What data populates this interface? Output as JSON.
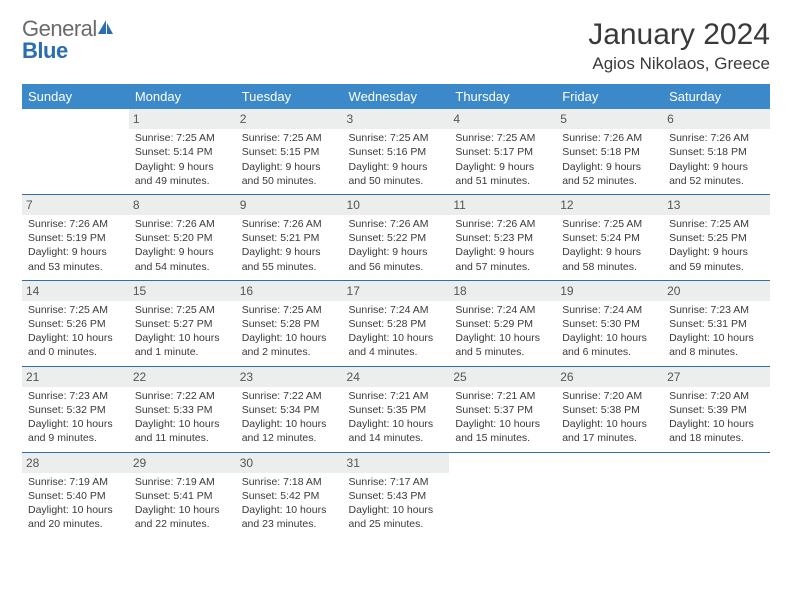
{
  "brand": {
    "part1": "General",
    "part2": "Blue"
  },
  "title": "January 2024",
  "location": "Agios Nikolaos, Greece",
  "colors": {
    "header_bg": "#3b89c9",
    "header_text": "#ffffff",
    "daynum_bg": "#eceded",
    "row_border": "#2e6fa8",
    "text": "#3a3a3a",
    "logo_blue": "#2a6db0"
  },
  "layout": {
    "columns": 7,
    "rows": 5,
    "cell_font_pt": 8,
    "title_font_pt": 22
  },
  "days_of_week": [
    "Sunday",
    "Monday",
    "Tuesday",
    "Wednesday",
    "Thursday",
    "Friday",
    "Saturday"
  ],
  "weeks": [
    [
      null,
      {
        "n": "1",
        "sr": "Sunrise: 7:25 AM",
        "ss": "Sunset: 5:14 PM",
        "d1": "Daylight: 9 hours",
        "d2": "and 49 minutes."
      },
      {
        "n": "2",
        "sr": "Sunrise: 7:25 AM",
        "ss": "Sunset: 5:15 PM",
        "d1": "Daylight: 9 hours",
        "d2": "and 50 minutes."
      },
      {
        "n": "3",
        "sr": "Sunrise: 7:25 AM",
        "ss": "Sunset: 5:16 PM",
        "d1": "Daylight: 9 hours",
        "d2": "and 50 minutes."
      },
      {
        "n": "4",
        "sr": "Sunrise: 7:25 AM",
        "ss": "Sunset: 5:17 PM",
        "d1": "Daylight: 9 hours",
        "d2": "and 51 minutes."
      },
      {
        "n": "5",
        "sr": "Sunrise: 7:26 AM",
        "ss": "Sunset: 5:18 PM",
        "d1": "Daylight: 9 hours",
        "d2": "and 52 minutes."
      },
      {
        "n": "6",
        "sr": "Sunrise: 7:26 AM",
        "ss": "Sunset: 5:18 PM",
        "d1": "Daylight: 9 hours",
        "d2": "and 52 minutes."
      }
    ],
    [
      {
        "n": "7",
        "sr": "Sunrise: 7:26 AM",
        "ss": "Sunset: 5:19 PM",
        "d1": "Daylight: 9 hours",
        "d2": "and 53 minutes."
      },
      {
        "n": "8",
        "sr": "Sunrise: 7:26 AM",
        "ss": "Sunset: 5:20 PM",
        "d1": "Daylight: 9 hours",
        "d2": "and 54 minutes."
      },
      {
        "n": "9",
        "sr": "Sunrise: 7:26 AM",
        "ss": "Sunset: 5:21 PM",
        "d1": "Daylight: 9 hours",
        "d2": "and 55 minutes."
      },
      {
        "n": "10",
        "sr": "Sunrise: 7:26 AM",
        "ss": "Sunset: 5:22 PM",
        "d1": "Daylight: 9 hours",
        "d2": "and 56 minutes."
      },
      {
        "n": "11",
        "sr": "Sunrise: 7:26 AM",
        "ss": "Sunset: 5:23 PM",
        "d1": "Daylight: 9 hours",
        "d2": "and 57 minutes."
      },
      {
        "n": "12",
        "sr": "Sunrise: 7:25 AM",
        "ss": "Sunset: 5:24 PM",
        "d1": "Daylight: 9 hours",
        "d2": "and 58 minutes."
      },
      {
        "n": "13",
        "sr": "Sunrise: 7:25 AM",
        "ss": "Sunset: 5:25 PM",
        "d1": "Daylight: 9 hours",
        "d2": "and 59 minutes."
      }
    ],
    [
      {
        "n": "14",
        "sr": "Sunrise: 7:25 AM",
        "ss": "Sunset: 5:26 PM",
        "d1": "Daylight: 10 hours",
        "d2": "and 0 minutes."
      },
      {
        "n": "15",
        "sr": "Sunrise: 7:25 AM",
        "ss": "Sunset: 5:27 PM",
        "d1": "Daylight: 10 hours",
        "d2": "and 1 minute."
      },
      {
        "n": "16",
        "sr": "Sunrise: 7:25 AM",
        "ss": "Sunset: 5:28 PM",
        "d1": "Daylight: 10 hours",
        "d2": "and 2 minutes."
      },
      {
        "n": "17",
        "sr": "Sunrise: 7:24 AM",
        "ss": "Sunset: 5:28 PM",
        "d1": "Daylight: 10 hours",
        "d2": "and 4 minutes."
      },
      {
        "n": "18",
        "sr": "Sunrise: 7:24 AM",
        "ss": "Sunset: 5:29 PM",
        "d1": "Daylight: 10 hours",
        "d2": "and 5 minutes."
      },
      {
        "n": "19",
        "sr": "Sunrise: 7:24 AM",
        "ss": "Sunset: 5:30 PM",
        "d1": "Daylight: 10 hours",
        "d2": "and 6 minutes."
      },
      {
        "n": "20",
        "sr": "Sunrise: 7:23 AM",
        "ss": "Sunset: 5:31 PM",
        "d1": "Daylight: 10 hours",
        "d2": "and 8 minutes."
      }
    ],
    [
      {
        "n": "21",
        "sr": "Sunrise: 7:23 AM",
        "ss": "Sunset: 5:32 PM",
        "d1": "Daylight: 10 hours",
        "d2": "and 9 minutes."
      },
      {
        "n": "22",
        "sr": "Sunrise: 7:22 AM",
        "ss": "Sunset: 5:33 PM",
        "d1": "Daylight: 10 hours",
        "d2": "and 11 minutes."
      },
      {
        "n": "23",
        "sr": "Sunrise: 7:22 AM",
        "ss": "Sunset: 5:34 PM",
        "d1": "Daylight: 10 hours",
        "d2": "and 12 minutes."
      },
      {
        "n": "24",
        "sr": "Sunrise: 7:21 AM",
        "ss": "Sunset: 5:35 PM",
        "d1": "Daylight: 10 hours",
        "d2": "and 14 minutes."
      },
      {
        "n": "25",
        "sr": "Sunrise: 7:21 AM",
        "ss": "Sunset: 5:37 PM",
        "d1": "Daylight: 10 hours",
        "d2": "and 15 minutes."
      },
      {
        "n": "26",
        "sr": "Sunrise: 7:20 AM",
        "ss": "Sunset: 5:38 PM",
        "d1": "Daylight: 10 hours",
        "d2": "and 17 minutes."
      },
      {
        "n": "27",
        "sr": "Sunrise: 7:20 AM",
        "ss": "Sunset: 5:39 PM",
        "d1": "Daylight: 10 hours",
        "d2": "and 18 minutes."
      }
    ],
    [
      {
        "n": "28",
        "sr": "Sunrise: 7:19 AM",
        "ss": "Sunset: 5:40 PM",
        "d1": "Daylight: 10 hours",
        "d2": "and 20 minutes."
      },
      {
        "n": "29",
        "sr": "Sunrise: 7:19 AM",
        "ss": "Sunset: 5:41 PM",
        "d1": "Daylight: 10 hours",
        "d2": "and 22 minutes."
      },
      {
        "n": "30",
        "sr": "Sunrise: 7:18 AM",
        "ss": "Sunset: 5:42 PM",
        "d1": "Daylight: 10 hours",
        "d2": "and 23 minutes."
      },
      {
        "n": "31",
        "sr": "Sunrise: 7:17 AM",
        "ss": "Sunset: 5:43 PM",
        "d1": "Daylight: 10 hours",
        "d2": "and 25 minutes."
      },
      null,
      null,
      null
    ]
  ]
}
